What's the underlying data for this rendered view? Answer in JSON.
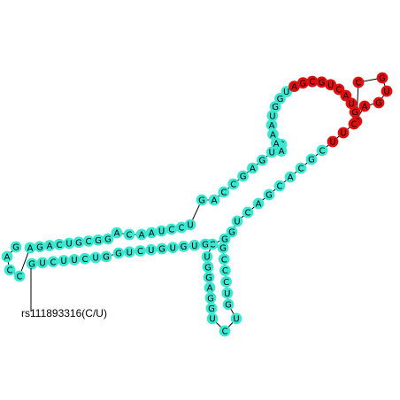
{
  "structure": {
    "colors": {
      "base": "#3ae8d2",
      "highlight": "#e01010",
      "backbone": "#000000"
    },
    "annotation": {
      "label": "rs111893316(C/U)"
    },
    "nucleotides": [
      {
        "b": "G",
        "h": false
      },
      {
        "b": "A",
        "h": false
      },
      {
        "b": "C",
        "h": false
      },
      {
        "b": "C",
        "h": false
      },
      {
        "b": "A",
        "h": false
      },
      {
        "b": "G",
        "h": false
      },
      {
        "b": "A",
        "h": false
      },
      {
        "b": "C",
        "h": false
      },
      {
        "b": "U",
        "h": false
      },
      {
        "b": "G",
        "h": false
      },
      {
        "b": "C",
        "h": false
      },
      {
        "b": "G",
        "h": false
      },
      {
        "b": "G",
        "h": false
      },
      {
        "b": "A",
        "h": false
      },
      {
        "b": "C",
        "h": false
      },
      {
        "b": "A",
        "h": false
      },
      {
        "b": "A",
        "h": false
      },
      {
        "b": "U",
        "h": false
      },
      {
        "b": "C",
        "h": false
      },
      {
        "b": "C",
        "h": false
      },
      {
        "b": "U",
        "h": false
      },
      {
        "b": "G",
        "h": false
      },
      {
        "b": "A",
        "h": false
      },
      {
        "b": "C",
        "h": false
      },
      {
        "b": "C",
        "h": false
      },
      {
        "b": "G",
        "h": false
      },
      {
        "b": "A",
        "h": false
      },
      {
        "b": "G",
        "h": false
      },
      {
        "b": "U",
        "h": false
      },
      {
        "b": "C",
        "h": false
      },
      {
        "b": "A",
        "h": false
      },
      {
        "b": "A",
        "h": false
      },
      {
        "b": "A",
        "h": false
      },
      {
        "b": "A",
        "h": false
      },
      {
        "b": "U",
        "h": false
      },
      {
        "b": "G",
        "h": false
      },
      {
        "b": "G",
        "h": false
      },
      {
        "b": "U",
        "h": false
      },
      {
        "b": "A",
        "h": true
      },
      {
        "b": "G",
        "h": true
      },
      {
        "b": "C",
        "h": true
      },
      {
        "b": "G",
        "h": true
      },
      {
        "b": "U",
        "h": true
      },
      {
        "b": "C",
        "h": true
      },
      {
        "b": "A",
        "h": true
      },
      {
        "b": "U",
        "h": true
      },
      {
        "b": "G",
        "h": true
      },
      {
        "b": "G",
        "h": true
      },
      {
        "b": "C",
        "h": true
      },
      {
        "b": "G",
        "h": true
      },
      {
        "b": "U",
        "h": true
      },
      {
        "b": "G",
        "h": true
      },
      {
        "b": "A",
        "h": true
      },
      {
        "b": "C",
        "h": true
      },
      {
        "b": "U",
        "h": true
      },
      {
        "b": "U",
        "h": true
      },
      {
        "b": "C",
        "h": false
      },
      {
        "b": "G",
        "h": false
      },
      {
        "b": "C",
        "h": false
      },
      {
        "b": "A",
        "h": false
      },
      {
        "b": "C",
        "h": false
      },
      {
        "b": "G",
        "h": false
      },
      {
        "b": "A",
        "h": false
      },
      {
        "b": "C",
        "h": false
      },
      {
        "b": "U",
        "h": false
      },
      {
        "b": "G",
        "h": false
      },
      {
        "b": "G",
        "h": false
      },
      {
        "b": "C",
        "h": false
      },
      {
        "b": "U",
        "h": false
      },
      {
        "b": "G",
        "h": false
      },
      {
        "b": "G",
        "h": false
      },
      {
        "b": "A",
        "h": false
      },
      {
        "b": "G",
        "h": false
      },
      {
        "b": "G",
        "h": false
      },
      {
        "b": "U",
        "h": false
      },
      {
        "b": "C",
        "h": false
      },
      {
        "b": "U",
        "h": false
      },
      {
        "b": "G",
        "h": false
      },
      {
        "b": "U",
        "h": false
      },
      {
        "b": "C",
        "h": false
      },
      {
        "b": "C",
        "h": false
      },
      {
        "b": "C",
        "h": false
      },
      {
        "b": "G",
        "h": false
      },
      {
        "b": "G",
        "h": false
      },
      {
        "b": "U",
        "h": false
      },
      {
        "b": "G",
        "h": false
      },
      {
        "b": "U",
        "h": false
      },
      {
        "b": "G",
        "h": false
      },
      {
        "b": "U",
        "h": false
      },
      {
        "b": "C",
        "h": false
      },
      {
        "b": "U",
        "h": false
      },
      {
        "b": "G",
        "h": false
      },
      {
        "b": "G",
        "h": false
      },
      {
        "b": "U",
        "h": false
      },
      {
        "b": "C",
        "h": false
      },
      {
        "b": "U",
        "h": false
      },
      {
        "b": "U",
        "h": false
      },
      {
        "b": "C",
        "h": false
      },
      {
        "b": "U",
        "h": false
      },
      {
        "b": "G",
        "h": false
      },
      {
        "b": "G",
        "h": false
      },
      {
        "b": "U",
        "h": false
      },
      {
        "b": "C",
        "h": false
      },
      {
        "b": "U",
        "h": false
      },
      {
        "b": "G",
        "h": false
      },
      {
        "b": "U",
        "h": false
      },
      {
        "b": "G",
        "h": false
      },
      {
        "b": "U",
        "h": false
      },
      {
        "b": "U",
        "h": false
      },
      {
        "b": "C",
        "h": false
      },
      {
        "b": "A",
        "h": false
      },
      {
        "b": "U",
        "h": false
      },
      {
        "b": "C",
        "h": false
      },
      {
        "b": "A",
        "h": false
      },
      {
        "b": "G",
        "h": false
      },
      {
        "b": "U",
        "h": false
      },
      {
        "b": "C",
        "h": false
      },
      {
        "b": "U",
        "h": false
      }
    ]
  }
}
